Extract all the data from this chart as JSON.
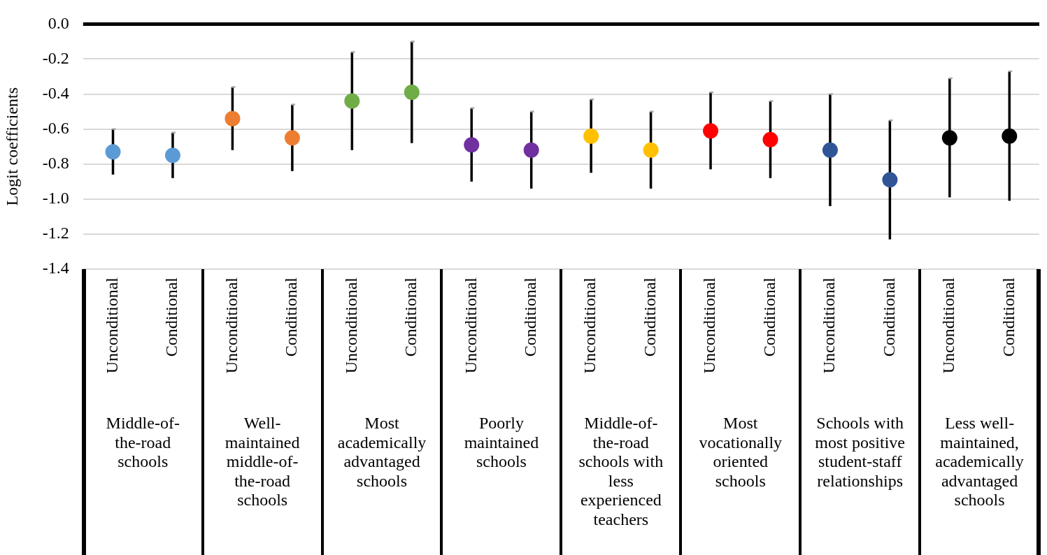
{
  "chart_data": {
    "type": "scatter",
    "ylabel": "Logit coefficients",
    "categories": [
      "Unconditional",
      "Conditional",
      "Unconditional",
      "Conditional",
      "Unconditional",
      "Conditional",
      "Unconditional",
      "Conditional",
      "Unconditional",
      "Conditional",
      "Unconditional",
      "Conditional",
      "Unconditional",
      "Conditional",
      "Unconditional",
      "Conditional"
    ],
    "ylim": [
      -1.4,
      0
    ],
    "yticks": [
      {
        "value": -1.4,
        "label": "-1.4"
      },
      {
        "value": -1.2,
        "label": "-1.2"
      },
      {
        "value": -1,
        "label": "-1.0"
      },
      {
        "value": -0.8,
        "label": "-0.8"
      },
      {
        "value": -0.6,
        "label": "-0.6"
      },
      {
        "value": -0.4,
        "label": "-0.4"
      },
      {
        "value": -0.2,
        "label": "-0.2"
      },
      {
        "value": 0,
        "label": "0.0"
      }
    ],
    "grid": "y",
    "legend": false,
    "marker": "circle",
    "annotations": [
      "Middle-of-the-road schools",
      "Well-maintained middle-of-the-road schools",
      "Most academically advantaged schools",
      "Poorly maintained schools",
      "Middle-of-the-road schools with less experienced teachers",
      "Most vocationally oriented schools",
      "Schools with most positive student-staff relationships",
      "Less well-maintained, academically advantaged schools"
    ],
    "series": [
      {
        "colors": [
          "#5b9bd5",
          "#5b9bd5",
          "#ed7d31",
          "#ed7d31",
          "#70ad47",
          "#70ad47",
          "#7030a0",
          "#7030a0",
          "#ffc000",
          "#ffc000",
          "#ff0000",
          "#ff0000",
          "#2f5597",
          "#2f5597",
          "#000000",
          "#000000"
        ],
        "values": [
          -0.73,
          -0.75,
          -0.54,
          -0.65,
          -0.44,
          -0.39,
          -0.69,
          -0.72,
          -0.64,
          -0.72,
          -0.61,
          -0.66,
          -0.72,
          -0.89,
          -0.65,
          -0.64
        ],
        "errors": [
          [
            -0.86,
            -0.6
          ],
          [
            -0.88,
            -0.62
          ],
          [
            -0.72,
            -0.36
          ],
          [
            -0.84,
            -0.46
          ],
          [
            -0.72,
            -0.16
          ],
          [
            -0.68,
            -0.1
          ],
          [
            -0.9,
            -0.48
          ],
          [
            -0.94,
            -0.5
          ],
          [
            -0.85,
            -0.43
          ],
          [
            -0.94,
            -0.5
          ],
          [
            -0.83,
            -0.39
          ],
          [
            -0.88,
            -0.44
          ],
          [
            -1.04,
            -0.4
          ],
          [
            -1.23,
            -0.55
          ],
          [
            -0.99,
            -0.31
          ],
          [
            -1.01,
            -0.27
          ]
        ]
      }
    ]
  }
}
